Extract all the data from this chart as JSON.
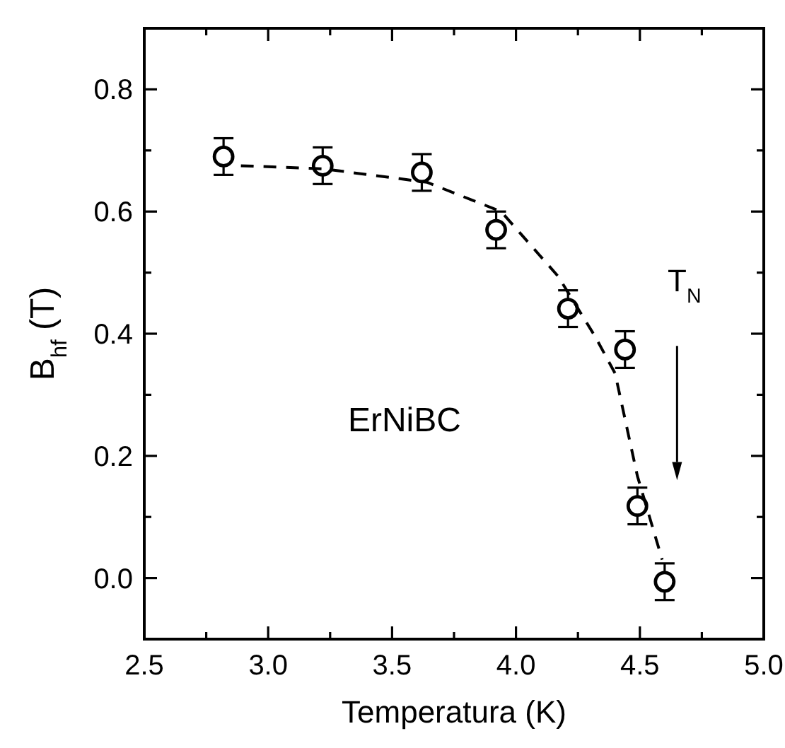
{
  "chart_data": {
    "type": "scatter",
    "xlabel": "Temperatura (K)",
    "ylabel": "B$_{hf}$ (T)",
    "xlim": [
      2.5,
      5.0
    ],
    "ylim": [
      -0.1,
      0.9
    ],
    "xticks": [
      2.5,
      {
        "value": 2.75,
        "label": null
      },
      {
        "value": 3,
        "label": "3.0"
      },
      {
        "value": 3.25,
        "label": null
      },
      3.5,
      {
        "value": 3.75,
        "label": null
      },
      {
        "value": 4,
        "label": "4.0"
      },
      {
        "value": 4.25,
        "label": null
      },
      4.5,
      {
        "value": 4.75,
        "label": null
      },
      {
        "value": 5,
        "label": "5.0"
      }
    ],
    "yticks": [
      {
        "value": 0,
        "label": "0.0"
      },
      {
        "value": 0.1,
        "label": null
      },
      0.2,
      {
        "value": 0.3,
        "label": null
      },
      0.4,
      {
        "value": 0.5,
        "label": null
      },
      0.6,
      {
        "value": 0.7,
        "label": null
      },
      0.8
    ],
    "grid": false,
    "series": [
      {
        "type": "scatter",
        "color": "#000000",
        "marker": "circle",
        "x": [
          2.82,
          3.22,
          3.62,
          3.92,
          4.21,
          4.44,
          4.49,
          4.6
        ],
        "values": [
          0.69,
          0.675,
          0.664,
          0.57,
          0.441,
          0.374,
          0.118,
          -0.006
        ],
        "errors": [
          0.03,
          0.03,
          0.03,
          0.03,
          0.03,
          0.03,
          0.03,
          0.03
        ]
      },
      {
        "type": "line",
        "color": "#000000",
        "marker": "none",
        "line_style": "dashed",
        "x": [
          2.89,
          3.22,
          3.64,
          3.94,
          4.17,
          4.32,
          4.4,
          4.49,
          4.59
        ],
        "values": [
          0.675,
          0.67,
          0.648,
          0.6,
          0.494,
          0.395,
          0.335,
          0.167,
          0.03
        ]
      }
    ],
    "annotations": [
      "ErNiBC",
      "T$_{N}$"
    ]
  }
}
